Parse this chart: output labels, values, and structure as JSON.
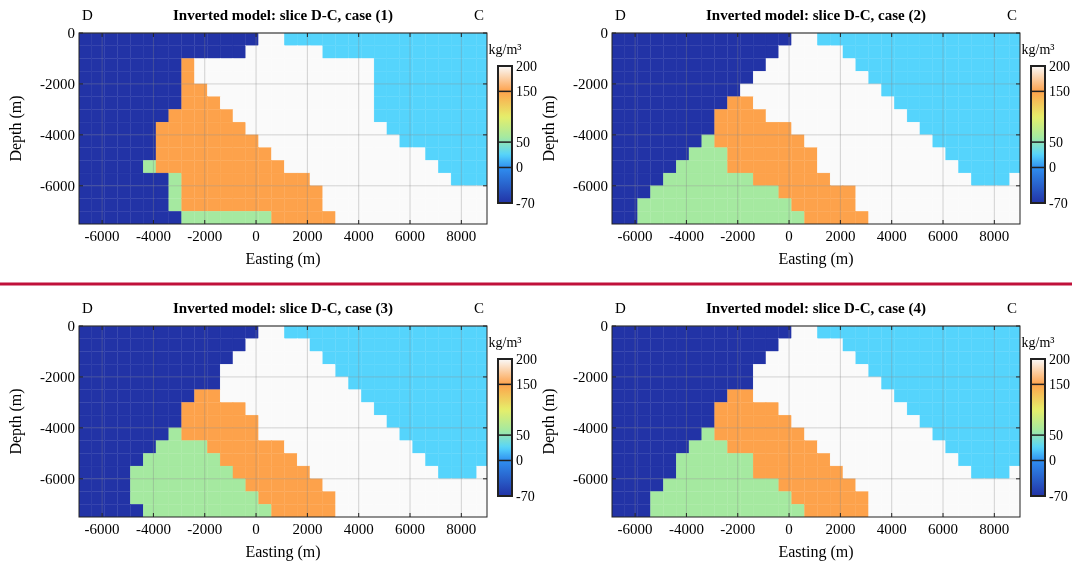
{
  "chart_data": [
    {
      "type": "heatmap",
      "title": "Inverted model: slice D-C, case (1)",
      "xlabel": "Easting (m)",
      "ylabel": "Depth (m)",
      "clabel": "kg/m³",
      "annotations": [
        "D",
        "C"
      ],
      "x": [
        -6650,
        -6150,
        -5650,
        -5150,
        -4650,
        -4150,
        -3650,
        -3150,
        -2650,
        -2150,
        -1650,
        -1150,
        -650,
        -150,
        350,
        850,
        1350,
        1850,
        2350,
        2850,
        3350,
        3850,
        4350,
        4850,
        5350,
        5850,
        6350,
        6850,
        7350,
        7850,
        8350,
        8850
      ],
      "y": [
        -250,
        -750,
        -1250,
        -1750,
        -2250,
        -2750,
        -3250,
        -3750,
        -4250,
        -4750,
        -5250,
        -5750,
        -6250,
        -6750,
        -7250
      ],
      "cells": [
        [
          -70,
          -70,
          -70,
          -70,
          -70,
          -70,
          -70,
          -70,
          -70,
          -70,
          -70,
          -70,
          -70,
          -70,
          200,
          200,
          25,
          25,
          25,
          25,
          25,
          25,
          25,
          25,
          25,
          25,
          25,
          25,
          25,
          25,
          25,
          25
        ],
        [
          -70,
          -70,
          -70,
          -70,
          -70,
          -70,
          -70,
          -70,
          -70,
          -70,
          -70,
          -70,
          -70,
          200,
          200,
          200,
          200,
          200,
          200,
          25,
          25,
          25,
          25,
          25,
          25,
          25,
          25,
          25,
          25,
          25,
          25,
          25
        ],
        [
          -70,
          -70,
          -70,
          -70,
          -70,
          -70,
          -70,
          -70,
          150,
          200,
          200,
          200,
          200,
          200,
          200,
          200,
          200,
          200,
          200,
          200,
          200,
          200,
          200,
          25,
          25,
          25,
          25,
          25,
          25,
          25,
          25,
          25
        ],
        [
          -70,
          -70,
          -70,
          -70,
          -70,
          -70,
          -70,
          -70,
          150,
          200,
          200,
          200,
          200,
          200,
          200,
          200,
          200,
          200,
          200,
          200,
          200,
          200,
          200,
          25,
          25,
          25,
          25,
          25,
          25,
          25,
          25,
          25
        ],
        [
          -70,
          -70,
          -70,
          -70,
          -70,
          -70,
          -70,
          -70,
          150,
          150,
          200,
          200,
          200,
          200,
          200,
          200,
          200,
          200,
          200,
          200,
          200,
          200,
          200,
          25,
          25,
          25,
          25,
          25,
          25,
          25,
          25,
          25
        ],
        [
          -70,
          -70,
          -70,
          -70,
          -70,
          -70,
          -70,
          -70,
          150,
          150,
          150,
          200,
          200,
          200,
          200,
          200,
          200,
          200,
          200,
          200,
          200,
          200,
          200,
          25,
          25,
          25,
          25,
          25,
          25,
          25,
          25,
          25
        ],
        [
          -70,
          -70,
          -70,
          -70,
          -70,
          -70,
          -70,
          150,
          150,
          150,
          150,
          150,
          200,
          200,
          200,
          200,
          200,
          200,
          200,
          200,
          200,
          200,
          200,
          25,
          25,
          25,
          25,
          25,
          25,
          25,
          25,
          25
        ],
        [
          -70,
          -70,
          -70,
          -70,
          -70,
          -70,
          150,
          150,
          150,
          150,
          150,
          150,
          150,
          200,
          200,
          200,
          200,
          200,
          200,
          200,
          200,
          200,
          200,
          200,
          25,
          25,
          25,
          25,
          25,
          25,
          25,
          25
        ],
        [
          -70,
          -70,
          -70,
          -70,
          -70,
          -70,
          150,
          150,
          150,
          150,
          150,
          150,
          150,
          150,
          200,
          200,
          200,
          200,
          200,
          200,
          200,
          200,
          200,
          200,
          200,
          25,
          25,
          25,
          25,
          25,
          25,
          25
        ],
        [
          -70,
          -70,
          -70,
          -70,
          -70,
          -70,
          150,
          150,
          150,
          150,
          150,
          150,
          150,
          150,
          150,
          200,
          200,
          200,
          200,
          200,
          200,
          200,
          200,
          200,
          200,
          200,
          200,
          25,
          25,
          25,
          25,
          25
        ],
        [
          -70,
          -70,
          -70,
          -70,
          -70,
          60,
          150,
          150,
          150,
          150,
          150,
          150,
          150,
          150,
          150,
          150,
          200,
          200,
          200,
          200,
          200,
          200,
          200,
          200,
          200,
          200,
          200,
          200,
          25,
          25,
          25,
          25
        ],
        [
          -70,
          -70,
          -70,
          -70,
          -70,
          -70,
          -70,
          60,
          150,
          150,
          150,
          150,
          150,
          150,
          150,
          150,
          150,
          150,
          200,
          200,
          200,
          200,
          200,
          200,
          200,
          200,
          200,
          200,
          200,
          25,
          25,
          25
        ],
        [
          -70,
          -70,
          -70,
          -70,
          -70,
          -70,
          -70,
          60,
          150,
          150,
          150,
          150,
          150,
          150,
          150,
          150,
          150,
          150,
          150,
          200,
          200,
          200,
          200,
          200,
          200,
          200,
          200,
          200,
          200,
          200,
          200,
          200
        ],
        [
          -70,
          -70,
          -70,
          -70,
          -70,
          -70,
          -70,
          60,
          150,
          150,
          150,
          150,
          150,
          150,
          150,
          150,
          150,
          150,
          150,
          200,
          200,
          200,
          200,
          200,
          200,
          200,
          200,
          200,
          200,
          200,
          200,
          200
        ],
        [
          -70,
          -70,
          -70,
          -70,
          -70,
          -70,
          -70,
          -70,
          60,
          60,
          60,
          60,
          60,
          60,
          60,
          150,
          150,
          150,
          150,
          150,
          200,
          200,
          200,
          200,
          200,
          200,
          200,
          200,
          200,
          200,
          200,
          200
        ]
      ],
      "xlim": [
        -6900,
        9000
      ],
      "ylim": [
        -7500,
        0
      ],
      "xticks": [
        -6000,
        -4000,
        -2000,
        0,
        2000,
        4000,
        6000,
        8000
      ],
      "yticks": [
        -6000,
        -4000,
        -2000,
        0
      ],
      "clim": [
        -70,
        200
      ],
      "cticks": [
        -70,
        0,
        50,
        150,
        200
      ],
      "grid": true
    },
    {
      "type": "heatmap",
      "title": "Inverted model: slice D-C, case (2)",
      "xlabel": "Easting (m)",
      "ylabel": "Depth (m)",
      "clabel": "kg/m³",
      "annotations": [
        "D",
        "C"
      ],
      "x": [
        -6650,
        -6150,
        -5650,
        -5150,
        -4650,
        -4150,
        -3650,
        -3150,
        -2650,
        -2150,
        -1650,
        -1150,
        -650,
        -150,
        350,
        850,
        1350,
        1850,
        2350,
        2850,
        3350,
        3850,
        4350,
        4850,
        5350,
        5850,
        6350,
        6850,
        7350,
        7850,
        8350,
        8850
      ],
      "y": [
        -250,
        -750,
        -1250,
        -1750,
        -2250,
        -2750,
        -3250,
        -3750,
        -4250,
        -4750,
        -5250,
        -5750,
        -6250,
        -6750,
        -7250
      ],
      "cells": [
        [
          -70,
          -70,
          -70,
          -70,
          -70,
          -70,
          -70,
          -70,
          -70,
          -70,
          -70,
          -70,
          -70,
          -70,
          200,
          200,
          25,
          25,
          25,
          25,
          25,
          25,
          25,
          25,
          25,
          25,
          25,
          25,
          25,
          25,
          25,
          25
        ],
        [
          -70,
          -70,
          -70,
          -70,
          -70,
          -70,
          -70,
          -70,
          -70,
          -70,
          -70,
          -70,
          -70,
          200,
          200,
          200,
          200,
          200,
          25,
          25,
          25,
          25,
          25,
          25,
          25,
          25,
          25,
          25,
          25,
          25,
          25,
          25
        ],
        [
          -70,
          -70,
          -70,
          -70,
          -70,
          -70,
          -70,
          -70,
          -70,
          -70,
          -70,
          -70,
          200,
          200,
          200,
          200,
          200,
          200,
          200,
          25,
          25,
          25,
          25,
          25,
          25,
          25,
          25,
          25,
          25,
          25,
          25,
          25
        ],
        [
          -70,
          -70,
          -70,
          -70,
          -70,
          -70,
          -70,
          -70,
          -70,
          -70,
          -70,
          200,
          200,
          200,
          200,
          200,
          200,
          200,
          200,
          200,
          25,
          25,
          25,
          25,
          25,
          25,
          25,
          25,
          25,
          25,
          25,
          25
        ],
        [
          -70,
          -70,
          -70,
          -70,
          -70,
          -70,
          -70,
          -70,
          -70,
          -70,
          200,
          200,
          200,
          200,
          200,
          200,
          200,
          200,
          200,
          200,
          200,
          25,
          25,
          25,
          25,
          25,
          25,
          25,
          25,
          25,
          25,
          25
        ],
        [
          -70,
          -70,
          -70,
          -70,
          -70,
          -70,
          -70,
          -70,
          -70,
          150,
          150,
          200,
          200,
          200,
          200,
          200,
          200,
          200,
          200,
          200,
          200,
          200,
          25,
          25,
          25,
          25,
          25,
          25,
          25,
          25,
          25,
          25
        ],
        [
          -70,
          -70,
          -70,
          -70,
          -70,
          -70,
          -70,
          -70,
          150,
          150,
          150,
          150,
          200,
          200,
          200,
          200,
          200,
          200,
          200,
          200,
          200,
          200,
          200,
          25,
          25,
          25,
          25,
          25,
          25,
          25,
          25,
          25
        ],
        [
          -70,
          -70,
          -70,
          -70,
          -70,
          -70,
          -70,
          -70,
          150,
          150,
          150,
          150,
          150,
          150,
          200,
          200,
          200,
          200,
          200,
          200,
          200,
          200,
          200,
          200,
          25,
          25,
          25,
          25,
          25,
          25,
          25,
          25
        ],
        [
          -70,
          -70,
          -70,
          -70,
          -70,
          -70,
          -70,
          60,
          150,
          150,
          150,
          150,
          150,
          150,
          150,
          200,
          200,
          200,
          200,
          200,
          200,
          200,
          200,
          200,
          200,
          25,
          25,
          25,
          25,
          25,
          25,
          25
        ],
        [
          -70,
          -70,
          -70,
          -70,
          -70,
          -70,
          60,
          60,
          60,
          150,
          150,
          150,
          150,
          150,
          150,
          150,
          200,
          200,
          200,
          200,
          200,
          200,
          200,
          200,
          200,
          200,
          25,
          25,
          25,
          25,
          25,
          25
        ],
        [
          -70,
          -70,
          -70,
          -70,
          -70,
          60,
          60,
          60,
          60,
          150,
          150,
          150,
          150,
          150,
          150,
          150,
          200,
          200,
          200,
          200,
          200,
          200,
          200,
          200,
          200,
          200,
          200,
          25,
          25,
          25,
          25,
          25
        ],
        [
          -70,
          -70,
          -70,
          -70,
          60,
          60,
          60,
          60,
          60,
          60,
          60,
          150,
          150,
          150,
          150,
          150,
          150,
          200,
          200,
          200,
          200,
          200,
          200,
          200,
          200,
          200,
          200,
          200,
          25,
          25,
          25,
          200
        ],
        [
          -70,
          -70,
          -70,
          60,
          60,
          60,
          60,
          60,
          60,
          60,
          60,
          60,
          60,
          150,
          150,
          150,
          150,
          150,
          150,
          200,
          200,
          200,
          200,
          200,
          200,
          200,
          200,
          200,
          200,
          200,
          200,
          200
        ],
        [
          -70,
          -70,
          60,
          60,
          60,
          60,
          60,
          60,
          60,
          60,
          60,
          60,
          60,
          60,
          150,
          150,
          150,
          150,
          150,
          200,
          200,
          200,
          200,
          200,
          200,
          200,
          200,
          200,
          200,
          200,
          200,
          200
        ],
        [
          -70,
          -70,
          60,
          60,
          60,
          60,
          60,
          60,
          60,
          60,
          60,
          60,
          60,
          60,
          60,
          150,
          150,
          150,
          150,
          150,
          200,
          200,
          200,
          200,
          200,
          200,
          200,
          200,
          200,
          200,
          200,
          200
        ]
      ],
      "xlim": [
        -6900,
        9000
      ],
      "ylim": [
        -7500,
        0
      ],
      "xticks": [
        -6000,
        -4000,
        -2000,
        0,
        2000,
        4000,
        6000,
        8000
      ],
      "yticks": [
        -6000,
        -4000,
        -2000,
        0
      ],
      "clim": [
        -70,
        200
      ],
      "cticks": [
        -70,
        0,
        50,
        150,
        200
      ],
      "grid": true
    },
    {
      "type": "heatmap",
      "title": "Inverted model: slice D-C, case (3)",
      "xlabel": "Easting (m)",
      "ylabel": "Depth (m)",
      "clabel": "kg/m³",
      "annotations": [
        "D",
        "C"
      ],
      "x": [
        -6650,
        -6150,
        -5650,
        -5150,
        -4650,
        -4150,
        -3650,
        -3150,
        -2650,
        -2150,
        -1650,
        -1150,
        -650,
        -150,
        350,
        850,
        1350,
        1850,
        2350,
        2850,
        3350,
        3850,
        4350,
        4850,
        5350,
        5850,
        6350,
        6850,
        7350,
        7850,
        8350,
        8850
      ],
      "y": [
        -250,
        -750,
        -1250,
        -1750,
        -2250,
        -2750,
        -3250,
        -3750,
        -4250,
        -4750,
        -5250,
        -5750,
        -6250,
        -6750,
        -7250
      ],
      "cells": [
        [
          -70,
          -70,
          -70,
          -70,
          -70,
          -70,
          -70,
          -70,
          -70,
          -70,
          -70,
          -70,
          -70,
          -70,
          200,
          200,
          25,
          25,
          25,
          25,
          25,
          25,
          25,
          25,
          25,
          25,
          25,
          25,
          25,
          25,
          25,
          25
        ],
        [
          -70,
          -70,
          -70,
          -70,
          -70,
          -70,
          -70,
          -70,
          -70,
          -70,
          -70,
          -70,
          -70,
          200,
          200,
          200,
          200,
          200,
          25,
          25,
          25,
          25,
          25,
          25,
          25,
          25,
          25,
          25,
          25,
          25,
          25,
          25
        ],
        [
          -70,
          -70,
          -70,
          -70,
          -70,
          -70,
          -70,
          -70,
          -70,
          -70,
          -70,
          -70,
          200,
          200,
          200,
          200,
          200,
          200,
          200,
          25,
          25,
          25,
          25,
          25,
          25,
          25,
          25,
          25,
          25,
          25,
          25,
          25
        ],
        [
          -70,
          -70,
          -70,
          -70,
          -70,
          -70,
          -70,
          -70,
          -70,
          -70,
          -70,
          200,
          200,
          200,
          200,
          200,
          200,
          200,
          200,
          200,
          25,
          25,
          25,
          25,
          25,
          25,
          25,
          25,
          25,
          25,
          25,
          25
        ],
        [
          -70,
          -70,
          -70,
          -70,
          -70,
          -70,
          -70,
          -70,
          -70,
          -70,
          -70,
          200,
          200,
          200,
          200,
          200,
          200,
          200,
          200,
          200,
          200,
          25,
          25,
          25,
          25,
          25,
          25,
          25,
          25,
          25,
          25,
          25
        ],
        [
          -70,
          -70,
          -70,
          -70,
          -70,
          -70,
          -70,
          -70,
          -70,
          150,
          150,
          200,
          200,
          200,
          200,
          200,
          200,
          200,
          200,
          200,
          200,
          200,
          25,
          25,
          25,
          25,
          25,
          25,
          25,
          25,
          25,
          25
        ],
        [
          -70,
          -70,
          -70,
          -70,
          -70,
          -70,
          -70,
          -70,
          150,
          150,
          150,
          150,
          150,
          200,
          200,
          200,
          200,
          200,
          200,
          200,
          200,
          200,
          200,
          25,
          25,
          25,
          25,
          25,
          25,
          25,
          25,
          25
        ],
        [
          -70,
          -70,
          -70,
          -70,
          -70,
          -70,
          -70,
          -70,
          150,
          150,
          150,
          150,
          150,
          150,
          200,
          200,
          200,
          200,
          200,
          200,
          200,
          200,
          200,
          200,
          25,
          25,
          25,
          25,
          25,
          25,
          25,
          25
        ],
        [
          -70,
          -70,
          -70,
          -70,
          -70,
          -70,
          -70,
          60,
          150,
          150,
          150,
          150,
          150,
          150,
          200,
          200,
          200,
          200,
          200,
          200,
          200,
          200,
          200,
          200,
          200,
          25,
          25,
          25,
          25,
          25,
          25,
          25
        ],
        [
          -70,
          -70,
          -70,
          -70,
          -70,
          -70,
          60,
          60,
          60,
          60,
          150,
          150,
          150,
          150,
          150,
          150,
          200,
          200,
          200,
          200,
          200,
          200,
          200,
          200,
          200,
          200,
          25,
          25,
          25,
          25,
          25,
          25
        ],
        [
          -70,
          -70,
          -70,
          -70,
          -70,
          60,
          60,
          60,
          60,
          60,
          60,
          150,
          150,
          150,
          150,
          150,
          150,
          200,
          200,
          200,
          200,
          200,
          200,
          200,
          200,
          200,
          200,
          25,
          25,
          25,
          25,
          25
        ],
        [
          -70,
          -70,
          -70,
          -70,
          60,
          60,
          60,
          60,
          60,
          60,
          60,
          60,
          150,
          150,
          150,
          150,
          150,
          150,
          200,
          200,
          200,
          200,
          200,
          200,
          200,
          200,
          200,
          200,
          25,
          25,
          25,
          200
        ],
        [
          -70,
          -70,
          -70,
          -70,
          60,
          60,
          60,
          60,
          60,
          60,
          60,
          60,
          60,
          150,
          150,
          150,
          150,
          150,
          150,
          200,
          200,
          200,
          200,
          200,
          200,
          200,
          200,
          200,
          200,
          200,
          200,
          200
        ],
        [
          -70,
          -70,
          -70,
          -70,
          60,
          60,
          60,
          60,
          60,
          60,
          60,
          60,
          60,
          60,
          150,
          150,
          150,
          150,
          150,
          150,
          200,
          200,
          200,
          200,
          200,
          200,
          200,
          200,
          200,
          200,
          200,
          200
        ],
        [
          -70,
          -70,
          -70,
          -70,
          -70,
          60,
          60,
          60,
          60,
          60,
          60,
          60,
          60,
          60,
          60,
          150,
          150,
          150,
          150,
          150,
          200,
          200,
          200,
          200,
          200,
          200,
          200,
          200,
          200,
          200,
          200,
          200
        ]
      ],
      "xlim": [
        -6900,
        9000
      ],
      "ylim": [
        -7500,
        0
      ],
      "xticks": [
        -6000,
        -4000,
        -2000,
        0,
        2000,
        4000,
        6000,
        8000
      ],
      "yticks": [
        -6000,
        -4000,
        -2000,
        0
      ],
      "clim": [
        -70,
        200
      ],
      "cticks": [
        -70,
        0,
        50,
        150,
        200
      ],
      "grid": true
    },
    {
      "type": "heatmap",
      "title": "Inverted model: slice D-C, case (4)",
      "xlabel": "Easting (m)",
      "ylabel": "Depth (m)",
      "clabel": "kg/m³",
      "annotations": [
        "D",
        "C"
      ],
      "x": [
        -6650,
        -6150,
        -5650,
        -5150,
        -4650,
        -4150,
        -3650,
        -3150,
        -2650,
        -2150,
        -1650,
        -1150,
        -650,
        -150,
        350,
        850,
        1350,
        1850,
        2350,
        2850,
        3350,
        3850,
        4350,
        4850,
        5350,
        5850,
        6350,
        6850,
        7350,
        7850,
        8350,
        8850
      ],
      "y": [
        -250,
        -750,
        -1250,
        -1750,
        -2250,
        -2750,
        -3250,
        -3750,
        -4250,
        -4750,
        -5250,
        -5750,
        -6250,
        -6750,
        -7250
      ],
      "cells": [
        [
          -70,
          -70,
          -70,
          -70,
          -70,
          -70,
          -70,
          -70,
          -70,
          -70,
          -70,
          -70,
          -70,
          -70,
          200,
          200,
          25,
          25,
          25,
          25,
          25,
          25,
          25,
          25,
          25,
          25,
          25,
          25,
          25,
          25,
          25,
          25
        ],
        [
          -70,
          -70,
          -70,
          -70,
          -70,
          -70,
          -70,
          -70,
          -70,
          -70,
          -70,
          -70,
          -70,
          200,
          200,
          200,
          200,
          200,
          25,
          25,
          25,
          25,
          25,
          25,
          25,
          25,
          25,
          25,
          25,
          25,
          25,
          25
        ],
        [
          -70,
          -70,
          -70,
          -70,
          -70,
          -70,
          -70,
          -70,
          -70,
          -70,
          -70,
          -70,
          200,
          200,
          200,
          200,
          200,
          200,
          200,
          25,
          25,
          25,
          25,
          25,
          25,
          25,
          25,
          25,
          25,
          25,
          25,
          25
        ],
        [
          -70,
          -70,
          -70,
          -70,
          -70,
          -70,
          -70,
          -70,
          -70,
          -70,
          -70,
          200,
          200,
          200,
          200,
          200,
          200,
          200,
          200,
          200,
          25,
          25,
          25,
          25,
          25,
          25,
          25,
          25,
          25,
          25,
          25,
          25
        ],
        [
          -70,
          -70,
          -70,
          -70,
          -70,
          -70,
          -70,
          -70,
          -70,
          -70,
          -70,
          200,
          200,
          200,
          200,
          200,
          200,
          200,
          200,
          200,
          200,
          25,
          25,
          25,
          25,
          25,
          25,
          25,
          25,
          25,
          25,
          25
        ],
        [
          -70,
          -70,
          -70,
          -70,
          -70,
          -70,
          -70,
          -70,
          -70,
          150,
          150,
          200,
          200,
          200,
          200,
          200,
          200,
          200,
          200,
          200,
          200,
          200,
          25,
          25,
          25,
          25,
          25,
          25,
          25,
          25,
          25,
          25
        ],
        [
          -70,
          -70,
          -70,
          -70,
          -70,
          -70,
          -70,
          -70,
          150,
          150,
          150,
          150,
          150,
          200,
          200,
          200,
          200,
          200,
          200,
          200,
          200,
          200,
          200,
          25,
          25,
          25,
          25,
          25,
          25,
          25,
          25,
          25
        ],
        [
          -70,
          -70,
          -70,
          -70,
          -70,
          -70,
          -70,
          -70,
          150,
          150,
          150,
          150,
          150,
          150,
          200,
          200,
          200,
          200,
          200,
          200,
          200,
          200,
          200,
          200,
          25,
          25,
          25,
          25,
          25,
          25,
          25,
          25
        ],
        [
          -70,
          -70,
          -70,
          -70,
          -70,
          -70,
          -70,
          60,
          150,
          150,
          150,
          150,
          150,
          150,
          150,
          200,
          200,
          200,
          200,
          200,
          200,
          200,
          200,
          200,
          200,
          25,
          25,
          25,
          25,
          25,
          25,
          25
        ],
        [
          -70,
          -70,
          -70,
          -70,
          -70,
          -70,
          60,
          60,
          60,
          150,
          150,
          150,
          150,
          150,
          150,
          150,
          200,
          200,
          200,
          200,
          200,
          200,
          200,
          200,
          200,
          200,
          25,
          25,
          25,
          25,
          25,
          25
        ],
        [
          -70,
          -70,
          -70,
          -70,
          -70,
          60,
          60,
          60,
          60,
          60,
          60,
          150,
          150,
          150,
          150,
          150,
          150,
          200,
          200,
          200,
          200,
          200,
          200,
          200,
          200,
          200,
          200,
          25,
          25,
          25,
          25,
          25
        ],
        [
          -70,
          -70,
          -70,
          -70,
          -70,
          60,
          60,
          60,
          60,
          60,
          60,
          150,
          150,
          150,
          150,
          150,
          150,
          150,
          200,
          200,
          200,
          200,
          200,
          200,
          200,
          200,
          200,
          200,
          25,
          25,
          25,
          200
        ],
        [
          -70,
          -70,
          -70,
          -70,
          60,
          60,
          60,
          60,
          60,
          60,
          60,
          60,
          60,
          150,
          150,
          150,
          150,
          150,
          150,
          200,
          200,
          200,
          200,
          200,
          200,
          200,
          200,
          200,
          200,
          200,
          200,
          200
        ],
        [
          -70,
          -70,
          -70,
          60,
          60,
          60,
          60,
          60,
          60,
          60,
          60,
          60,
          60,
          60,
          150,
          150,
          150,
          150,
          150,
          150,
          200,
          200,
          200,
          200,
          200,
          200,
          200,
          200,
          200,
          200,
          200,
          200
        ],
        [
          -70,
          -70,
          -70,
          60,
          60,
          60,
          60,
          60,
          60,
          60,
          60,
          60,
          60,
          60,
          60,
          150,
          150,
          150,
          150,
          150,
          200,
          200,
          200,
          200,
          200,
          200,
          200,
          200,
          200,
          200,
          200,
          200
        ]
      ],
      "xlim": [
        -6900,
        9000
      ],
      "ylim": [
        -7500,
        0
      ],
      "xticks": [
        -6000,
        -4000,
        -2000,
        0,
        2000,
        4000,
        6000,
        8000
      ],
      "yticks": [
        -6000,
        -4000,
        -2000,
        0
      ],
      "clim": [
        -70,
        200
      ],
      "cticks": [
        -70,
        0,
        50,
        150,
        200
      ],
      "grid": true
    }
  ]
}
